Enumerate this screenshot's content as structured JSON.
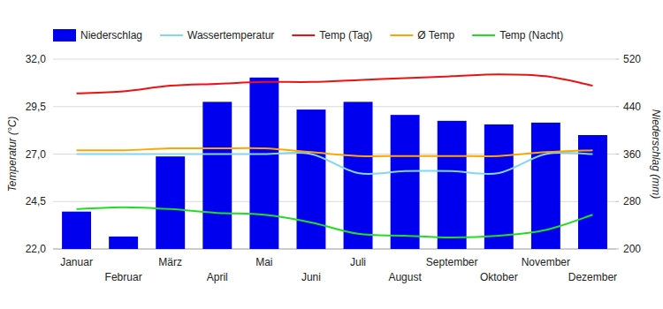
{
  "chart_data": {
    "type": "bar",
    "ylabel": "Temperatur (°C)",
    "y2label": "Niederschlag (mm)",
    "categories": [
      "Januar",
      "Februar",
      "März",
      "April",
      "Mai",
      "Juni",
      "Juli",
      "August",
      "September",
      "Oktober",
      "November",
      "Dezember"
    ],
    "series": [
      {
        "name": "Niederschlag",
        "type": "bar",
        "color": "#0000ee",
        "axis": "y2",
        "values": [
          263,
          221,
          356,
          448,
          489,
          435,
          448,
          426,
          416,
          410,
          413,
          392
        ]
      },
      {
        "name": "Wassertemperatur",
        "type": "line",
        "color": "#7fd6f5",
        "values": [
          27.0,
          27.0,
          27.0,
          27.0,
          27.0,
          27.0,
          26.0,
          26.1,
          26.1,
          26.0,
          27.0,
          27.0
        ]
      },
      {
        "name": "Temp (Tag)",
        "type": "line",
        "color": "#ee1111",
        "values": [
          30.2,
          30.3,
          30.6,
          30.7,
          30.8,
          30.8,
          30.9,
          31.0,
          31.1,
          31.2,
          31.1,
          30.6
        ]
      },
      {
        "name": "Ø Temp",
        "type": "line",
        "color": "#ffa500",
        "values": [
          27.2,
          27.2,
          27.3,
          27.3,
          27.3,
          27.1,
          26.9,
          26.9,
          26.9,
          26.9,
          27.1,
          27.2
        ]
      },
      {
        "name": "Temp (Nacht)",
        "type": "line",
        "color": "#22dd22",
        "values": [
          24.1,
          24.2,
          24.1,
          23.9,
          23.8,
          23.4,
          22.8,
          22.7,
          22.6,
          22.7,
          23.0,
          23.8
        ]
      }
    ],
    "ylim": [
      22,
      32
    ],
    "yticks": [
      {
        "value": 22,
        "label": "22,0"
      },
      {
        "value": 24.5,
        "label": "24,5"
      },
      {
        "value": 27,
        "label": "27,0"
      },
      {
        "value": 29.5,
        "label": "29,5"
      },
      {
        "value": 32,
        "label": "32,0"
      }
    ],
    "y2lim": [
      200,
      520
    ],
    "y2ticks": [
      200,
      280,
      360,
      440,
      520
    ],
    "grid": true,
    "legend": "top"
  }
}
